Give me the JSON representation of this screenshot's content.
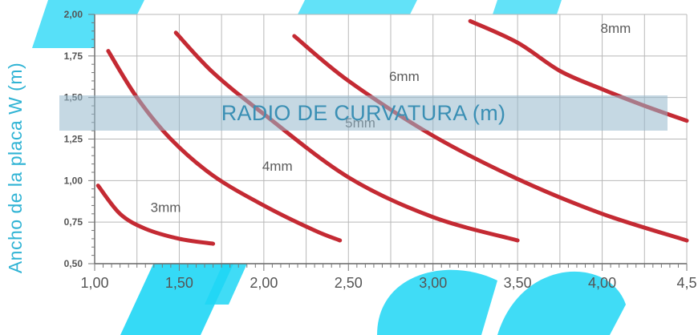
{
  "chart_data": {
    "type": "line",
    "title": "RADIO DE CURVATURA (m)",
    "ylabel": "Ancho de la placa W (m)",
    "xlabel": "",
    "xlim": [
      1.0,
      4.5
    ],
    "ylim": [
      0.5,
      2.0
    ],
    "x_ticks": [
      "1,00",
      "1,50",
      "2,00",
      "2,50",
      "3,00",
      "3,50",
      "4,00",
      "4,5"
    ],
    "y_ticks": [
      "2,00",
      "1,75",
      "1,50",
      "1,25",
      "1,00",
      "0,75",
      "0,50"
    ],
    "grid": true,
    "line_color": "#c42a33",
    "series": [
      {
        "name": "3mm",
        "x": [
          1.02,
          1.15,
          1.3,
          1.5,
          1.7
        ],
        "y": [
          0.97,
          0.8,
          0.71,
          0.65,
          0.62
        ]
      },
      {
        "name": "4mm",
        "x": [
          1.08,
          1.25,
          1.45,
          1.7,
          2.0,
          2.3,
          2.45
        ],
        "y": [
          1.78,
          1.5,
          1.25,
          1.03,
          0.85,
          0.7,
          0.64
        ]
      },
      {
        "name": "5mm",
        "x": [
          1.48,
          1.7,
          2.0,
          2.5,
          3.0,
          3.5
        ],
        "y": [
          1.89,
          1.65,
          1.4,
          1.02,
          0.78,
          0.64
        ]
      },
      {
        "name": "6mm",
        "x": [
          2.18,
          2.5,
          3.0,
          3.5,
          4.0,
          4.5
        ],
        "y": [
          1.87,
          1.6,
          1.27,
          1.01,
          0.8,
          0.64
        ]
      },
      {
        "name": "8mm",
        "x": [
          3.22,
          3.5,
          3.75,
          4.0,
          4.25,
          4.5
        ],
        "y": [
          1.96,
          1.83,
          1.66,
          1.55,
          1.45,
          1.36
        ]
      }
    ],
    "labels": [
      {
        "text": "3mm",
        "x": 1.42,
        "y": 0.81
      },
      {
        "text": "4mm",
        "x": 2.08,
        "y": 1.06
      },
      {
        "text": "5mm",
        "x": 2.57,
        "y": 1.32
      },
      {
        "text": "6mm",
        "x": 2.83,
        "y": 1.6
      },
      {
        "text": "8mm",
        "x": 4.08,
        "y": 1.89
      }
    ]
  }
}
